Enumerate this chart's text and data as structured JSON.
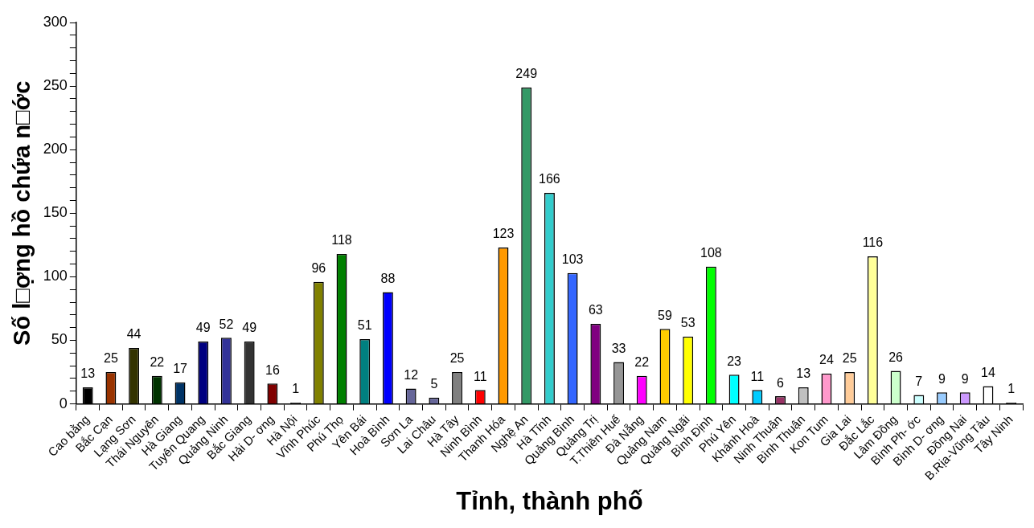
{
  "chart_data": {
    "type": "bar",
    "xlabel": "Tỉnh, thành phố",
    "ylabel": "Số l□ợng hồ chứa n□ớc",
    "categories": [
      "Cao bằng",
      "Bắc Cạn",
      "Lạng Sơn",
      "Thái Nguyên",
      "Hà Giang",
      "Tuyên Quang",
      "Quảng Ninh",
      "Bắc Giang",
      "Hải D- ơng",
      "Hà Nội",
      "Vĩnh Phúc",
      "Phú Thọ",
      "Yên Bái",
      "Hoà Bình",
      "Sơn La",
      "Lai Châu",
      "Hà Tây",
      "Ninh Bình",
      "Thanh Hóa",
      "Nghệ An",
      "Hà Tĩnh",
      "Quảng Bình",
      "Quảng Trị",
      "T.Thiên Huế",
      "Đà Nẵng",
      "Quảng Nam",
      "Quảng Ngãi",
      "Bình Định",
      "Phú Yên",
      "Khánh Hoà",
      "Ninh Thuận",
      "Bình Thuận",
      "Kon Tum",
      "Gia Lai",
      "Đắc Lắc",
      "Lâm Đồng",
      "Bình Ph- ớc",
      "Bình D- ơng",
      "Đồng Nai",
      "B.Rịa-Vũng Tàu",
      "Tây Ninh"
    ],
    "values": [
      13,
      25,
      44,
      22,
      17,
      49,
      52,
      49,
      16,
      1,
      96,
      118,
      51,
      88,
      12,
      5,
      25,
      11,
      123,
      249,
      166,
      103,
      63,
      33,
      22,
      59,
      53,
      108,
      23,
      11,
      6,
      13,
      24,
      25,
      116,
      26,
      7,
      9,
      9,
      14,
      1
    ],
    "colors": [
      "#000000",
      "#993300",
      "#333300",
      "#003300",
      "#003366",
      "#000080",
      "#333399",
      "#333333",
      "#800000",
      "#000000",
      "#808000",
      "#008000",
      "#008080",
      "#0000ff",
      "#666699",
      "#666699",
      "#808080",
      "#ff0000",
      "#ff9900",
      "#339966",
      "#33cccc",
      "#3366ff",
      "#800080",
      "#969696",
      "#ff00ff",
      "#ffcc00",
      "#ffff00",
      "#00ff00",
      "#00ffff",
      "#00ccff",
      "#993366",
      "#c0c0c0",
      "#ff99cc",
      "#ffcc99",
      "#ffff99",
      "#ccffcc",
      "#ccffff",
      "#99ccff",
      "#cc99ff",
      "#ffffff",
      "#000000"
    ],
    "ylim": [
      0,
      300
    ],
    "yticks": [
      0,
      {
        "value": 10,
        "label": null
      },
      {
        "value": 20,
        "label": null
      },
      {
        "value": 30,
        "label": null
      },
      {
        "value": 40,
        "label": null
      },
      50,
      {
        "value": 60,
        "label": null
      },
      {
        "value": 70,
        "label": null
      },
      {
        "value": 80,
        "label": null
      },
      {
        "value": 90,
        "label": null
      },
      100,
      {
        "value": 110,
        "label": null
      },
      {
        "value": 120,
        "label": null
      },
      {
        "value": 130,
        "label": null
      },
      {
        "value": 140,
        "label": null
      },
      150,
      {
        "value": 160,
        "label": null
      },
      {
        "value": 170,
        "label": null
      },
      {
        "value": 180,
        "label": null
      },
      {
        "value": 190,
        "label": null
      },
      200,
      {
        "value": 210,
        "label": null
      },
      {
        "value": 220,
        "label": null
      },
      {
        "value": 230,
        "label": null
      },
      {
        "value": 240,
        "label": null
      },
      250,
      {
        "value": 260,
        "label": null
      },
      {
        "value": 270,
        "label": null
      },
      {
        "value": 280,
        "label": null
      },
      {
        "value": 290,
        "label": null
      },
      300
    ],
    "data_labels": true,
    "grid": false,
    "legend": false
  }
}
